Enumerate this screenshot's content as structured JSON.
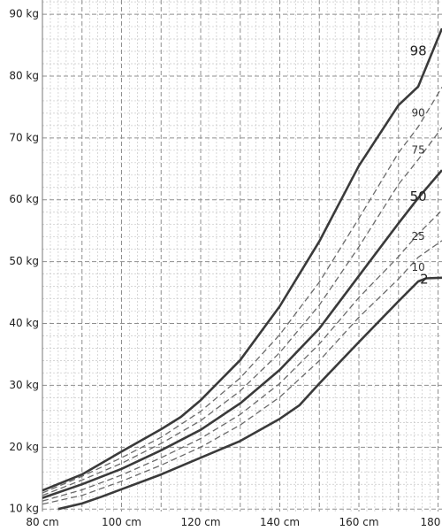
{
  "chart_data": {
    "type": "line",
    "title": "",
    "xlabel": "",
    "ylabel": "",
    "x_unit": "cm",
    "y_unit": "kg",
    "xlim": [
      80,
      181
    ],
    "ylim": [
      9.6,
      92.3
    ],
    "x_ticks": [
      80,
      100,
      120,
      140,
      160,
      180
    ],
    "x_tick_labels": [
      "80 cm",
      "100 cm",
      "120 cm",
      "140 cm",
      "160 cm",
      "180 c"
    ],
    "y_ticks": [
      10,
      20,
      30,
      40,
      50,
      60,
      70,
      80,
      90
    ],
    "y_tick_labels": [
      "10 kg",
      "20 kg",
      "30 kg",
      "40 kg",
      "50 kg",
      "60 kg",
      "70 kg",
      "80 kg",
      "90 kg"
    ],
    "grid": true,
    "minor_grid": true,
    "colors": {
      "major_grid": "#8f8f8f",
      "minor_grid": "#c8c8c8",
      "curve": "#3a3a3a",
      "dashed_curve": "#6a6a6a"
    },
    "series": [
      {
        "name": "2",
        "style": "solid",
        "x": [
          84,
          90,
          95,
          100,
          110,
          120,
          130,
          140,
          145,
          150,
          160,
          170,
          175,
          177,
          181
        ],
        "y": [
          10.0,
          10.9,
          12.0,
          13.2,
          15.6,
          18.3,
          21.0,
          24.6,
          26.8,
          30.3,
          37.0,
          43.6,
          46.8,
          47.3,
          47.4
        ]
      },
      {
        "name": "10",
        "style": "dashed",
        "x": [
          80,
          90,
          100,
          110,
          120,
          130,
          140,
          150,
          160,
          170,
          175,
          181
        ],
        "y": [
          10.8,
          12.2,
          14.5,
          17.1,
          20.0,
          23.6,
          28.1,
          34.0,
          41.0,
          47.2,
          50.7,
          53.4
        ]
      },
      {
        "name": "25",
        "style": "dashed",
        "x": [
          80,
          90,
          100,
          110,
          120,
          130,
          140,
          150,
          160,
          170,
          175,
          181
        ],
        "y": [
          11.3,
          13.1,
          15.5,
          18.3,
          21.4,
          25.3,
          30.3,
          36.7,
          44.2,
          50.8,
          54.5,
          58.3
        ]
      },
      {
        "name": "50",
        "style": "solid",
        "x": [
          80,
          90,
          100,
          110,
          120,
          130,
          140,
          150,
          160,
          170,
          175,
          181
        ],
        "y": [
          11.8,
          14.0,
          16.5,
          19.5,
          22.8,
          27.1,
          32.5,
          39.2,
          47.7,
          56.2,
          60.3,
          64.8
        ]
      },
      {
        "name": "75",
        "style": "dashed",
        "x": [
          80,
          90,
          100,
          110,
          120,
          130,
          140,
          150,
          160,
          170,
          175,
          181
        ],
        "y": [
          12.2,
          14.7,
          17.4,
          20.6,
          24.3,
          29.1,
          35.3,
          43.0,
          52.4,
          62.5,
          66.5,
          71.7
        ]
      },
      {
        "name": "90",
        "style": "dashed",
        "x": [
          80,
          90,
          100,
          110,
          120,
          130,
          140,
          150,
          160,
          170,
          175,
          181
        ],
        "y": [
          12.6,
          15.3,
          18.3,
          21.6,
          25.8,
          31.2,
          38.2,
          46.7,
          57.0,
          67.6,
          71.8,
          78.2
        ]
      },
      {
        "name": "98",
        "style": "solid",
        "x": [
          80,
          90,
          100,
          110,
          115,
          120,
          130,
          140,
          150,
          160,
          170,
          175,
          181
        ],
        "y": [
          13.0,
          15.6,
          19.3,
          22.9,
          24.9,
          27.6,
          34.1,
          42.8,
          53.3,
          65.5,
          75.3,
          78.3,
          87.7
        ]
      }
    ],
    "curve_labels": [
      {
        "text": "98",
        "x": 175,
        "y": 84.0,
        "weight": "major"
      },
      {
        "text": "90",
        "x": 175,
        "y": 74.0,
        "weight": "minor"
      },
      {
        "text": "75",
        "x": 175,
        "y": 68.0,
        "weight": "minor"
      },
      {
        "text": "50",
        "x": 175,
        "y": 60.5,
        "weight": "major"
      },
      {
        "text": "25",
        "x": 175,
        "y": 54.0,
        "weight": "minor"
      },
      {
        "text": "10",
        "x": 175,
        "y": 49.0,
        "weight": "minor"
      },
      {
        "text": "2",
        "x": 176.5,
        "y": 47.1,
        "weight": "major"
      }
    ]
  }
}
